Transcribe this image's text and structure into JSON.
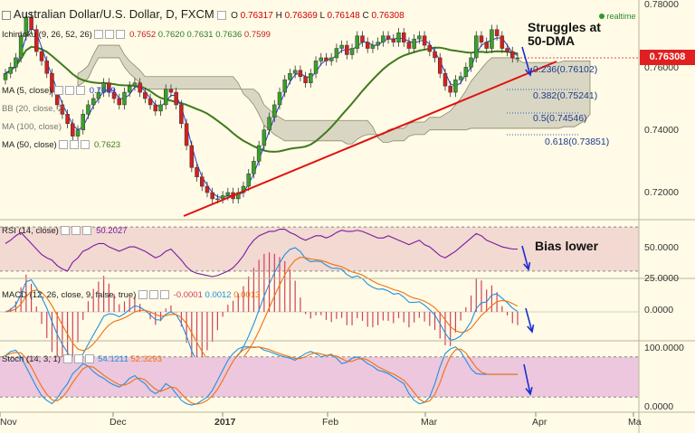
{
  "header": {
    "title": "Australian Dollar/U.S. Dollar, D, FXCM",
    "ohlc": {
      "o_label": "O",
      "o": "0.76317",
      "h_label": "H",
      "h": "0.76369",
      "l_label": "L",
      "l": "0.76148",
      "c_label": "C",
      "c": "0.76308"
    },
    "realtime": "realtime",
    "ichimoku_label": "Ichimoku (9, 26, 52, 26)",
    "ichimoku_vals": [
      "0.7652",
      "0.7620",
      "0.7631",
      "0.7636",
      "0.7599"
    ],
    "ma5_label": "MA (5, close)",
    "ma5_val": "0.7649",
    "bb_label": "BB (20, close, 2)",
    "ma100_label": "MA (100, close)",
    "ma50_label": "MA (50, close)",
    "ma50_val": "0.7623"
  },
  "price_axis": {
    "ticks": [
      "0.78000",
      "0.76000",
      "0.74000",
      "0.72000"
    ],
    "current": "0.76308"
  },
  "fib_levels": [
    "0.236(0.76102)",
    "0.382(0.75241)",
    "0.5(0.74546)",
    "0.618(0.73851)"
  ],
  "annotations": {
    "struggles_1": "Struggles at",
    "struggles_2": "50-DMA",
    "bias": "Bias lower"
  },
  "rsi": {
    "label": "RSI (14, close)",
    "value": "50.2027",
    "ticks": [
      "50.0000",
      "25.0000"
    ]
  },
  "macd": {
    "label": "MACD (12, 26, close, 9, false, true)",
    "v1": "-0.0001",
    "v2": "0.0012",
    "v3": "0.0013",
    "ticks": [
      "0.0000"
    ]
  },
  "stoch": {
    "label": "Stoch (14, 3, 1)",
    "v1": "54.1211",
    "v2": "52.3293",
    "ticks": [
      "100.0000",
      "0.0000"
    ]
  },
  "time_axis": [
    "Nov",
    "Dec",
    "2017",
    "Feb",
    "Mar",
    "Apr",
    "Ma"
  ],
  "colors": {
    "bull": "#3aa02a",
    "bear": "#d42020",
    "ma50": "#3f7a1e",
    "ma5": "#2040e0",
    "trend": "#e01010",
    "cloud": "#b9b9a5",
    "fib": "#3050c0",
    "rsi_bg": "#f2d9d2",
    "stoch_bg": "#ecc7dd",
    "macd": "#2090e0",
    "signal": "#f07010",
    "hist": "#d04060",
    "page_bg": "#fffbe6"
  },
  "chart_data": {
    "type": "candlestick",
    "price_close": [
      0.758,
      0.76,
      0.763,
      0.77,
      0.776,
      0.772,
      0.765,
      0.762,
      0.758,
      0.752,
      0.748,
      0.745,
      0.742,
      0.738,
      0.74,
      0.745,
      0.748,
      0.75,
      0.752,
      0.755,
      0.752,
      0.75,
      0.748,
      0.752,
      0.754,
      0.755,
      0.752,
      0.75,
      0.748,
      0.746,
      0.748,
      0.753,
      0.752,
      0.748,
      0.742,
      0.735,
      0.728,
      0.725,
      0.722,
      0.72,
      0.718,
      0.718,
      0.719,
      0.72,
      0.718,
      0.72,
      0.722,
      0.726,
      0.73,
      0.735,
      0.74,
      0.744,
      0.748,
      0.752,
      0.756,
      0.758,
      0.759,
      0.757,
      0.755,
      0.758,
      0.762,
      0.763,
      0.762,
      0.763,
      0.766,
      0.767,
      0.764,
      0.766,
      0.77,
      0.768,
      0.766,
      0.767,
      0.768,
      0.77,
      0.769,
      0.768,
      0.771,
      0.768,
      0.766,
      0.769,
      0.77,
      0.767,
      0.765,
      0.763,
      0.758,
      0.754,
      0.752,
      0.756,
      0.757,
      0.76,
      0.763,
      0.77,
      0.768,
      0.766,
      0.772,
      0.77,
      0.766,
      0.765,
      0.763,
      0.763
    ],
    "rsi": [
      55,
      58,
      62,
      65,
      60,
      55,
      50,
      45,
      42,
      40,
      35,
      32,
      30,
      38,
      42,
      48,
      50,
      53,
      55,
      55,
      52,
      50,
      48,
      50,
      52,
      52,
      50,
      48,
      45,
      42,
      44,
      48,
      50,
      45,
      40,
      34,
      30,
      28,
      27,
      26,
      25,
      26,
      28,
      30,
      33,
      38,
      44,
      52,
      58,
      62,
      64,
      66,
      66,
      68,
      68,
      65,
      63,
      60,
      58,
      60,
      62,
      62,
      60,
      62,
      65,
      67,
      66,
      66,
      67,
      66,
      64,
      62,
      60,
      60,
      62,
      60,
      58,
      56,
      54,
      56,
      58,
      54,
      52,
      48,
      44,
      42,
      45,
      48,
      52,
      56,
      60,
      64,
      62,
      58,
      56,
      54,
      52,
      51,
      50,
      50
    ],
    "rsi_ylim": [
      25,
      75
    ],
    "stoch_k": [
      82,
      88,
      90,
      80,
      65,
      50,
      35,
      22,
      15,
      10,
      18,
      30,
      40,
      55,
      62,
      70,
      66,
      58,
      52,
      48,
      42,
      38,
      35,
      40,
      48,
      52,
      45,
      40,
      30,
      25,
      30,
      40,
      35,
      25,
      15,
      10,
      8,
      10,
      15,
      20,
      30,
      45,
      60,
      75,
      85,
      92,
      95,
      95,
      94,
      95,
      90,
      88,
      85,
      82,
      80,
      78,
      75,
      80,
      85,
      88,
      85,
      80,
      82,
      84,
      78,
      70,
      72,
      78,
      80,
      76,
      70,
      66,
      60,
      58,
      55,
      50,
      45,
      40,
      25,
      15,
      10,
      12,
      20,
      40,
      65,
      85,
      92,
      95,
      88,
      75,
      62,
      55,
      54,
      54,
      54,
      54,
      54,
      54,
      54,
      54
    ],
    "stoch_ylim": [
      0,
      100
    ],
    "macd_ylim": [
      -0.006,
      0.006
    ]
  }
}
